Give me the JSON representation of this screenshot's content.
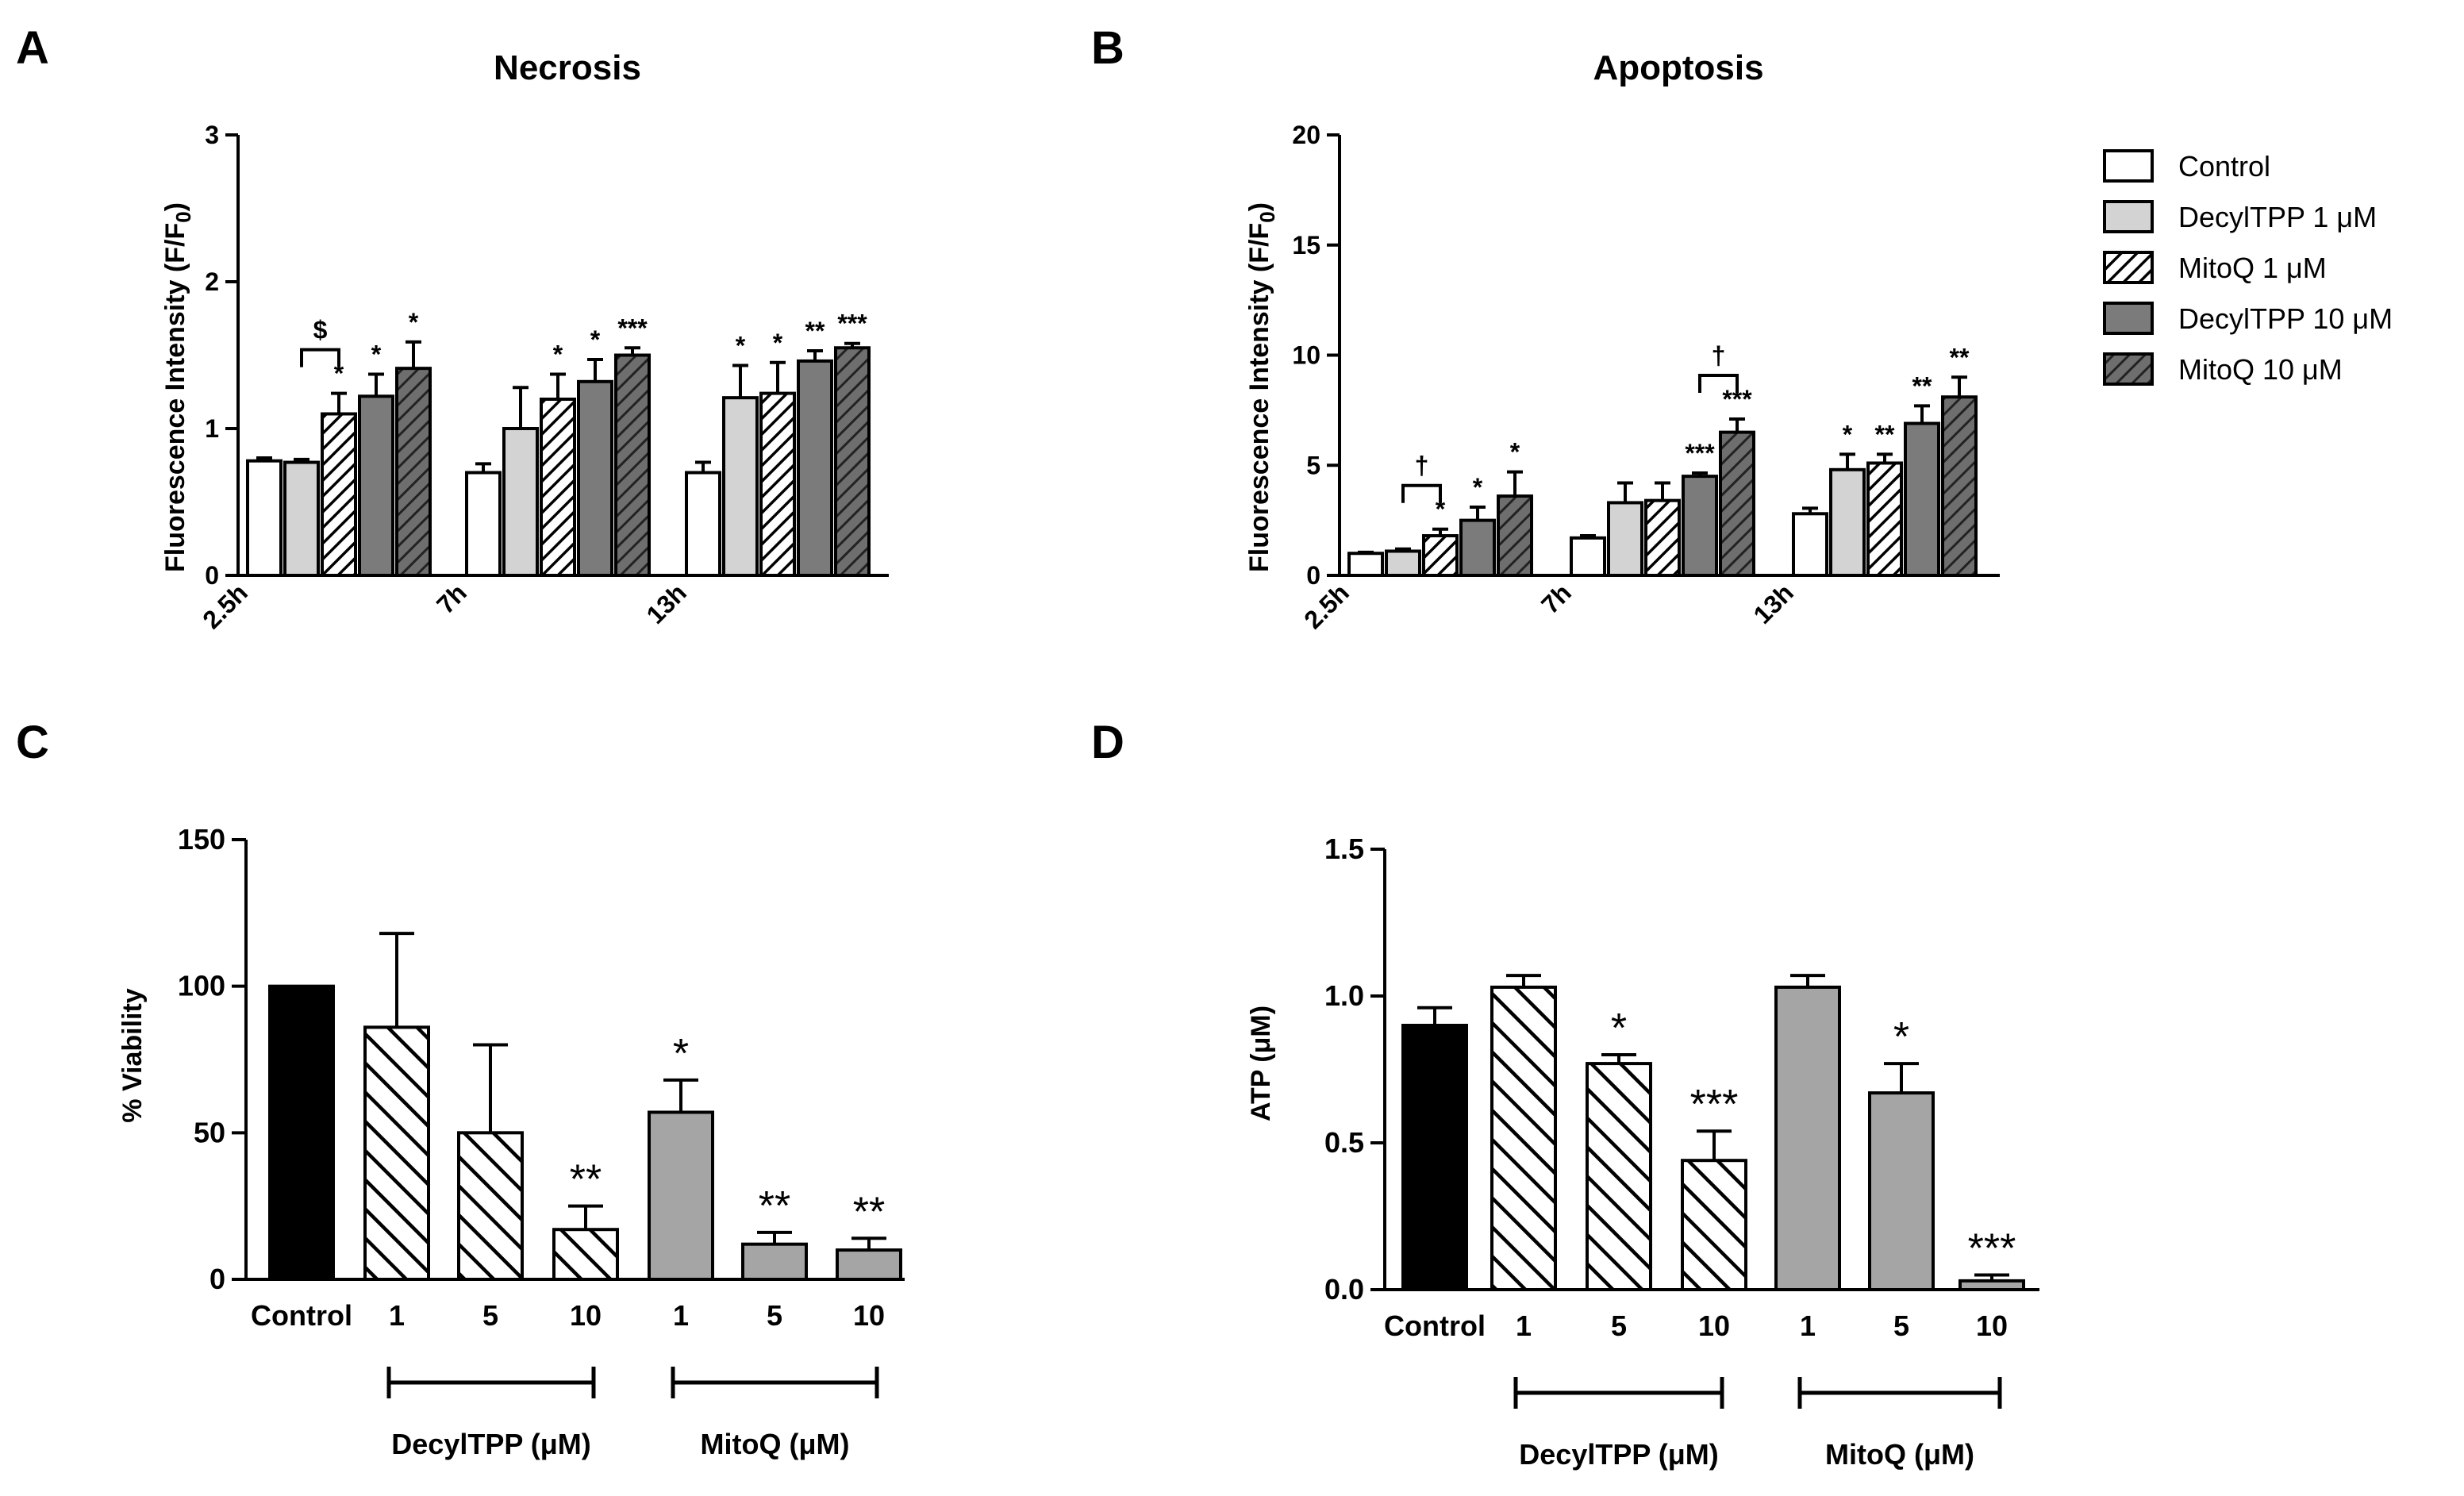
{
  "colors": {
    "control": "#ffffff",
    "decyl1": "#d3d3d3",
    "mitoq1": "#ffffff",
    "decyl10": "#7b7b7b",
    "mitoq10": "#6e6e6e",
    "black": "#000000",
    "grey": "#a5a5a5"
  },
  "legend": [
    {
      "label": "Control",
      "key": "control",
      "hatch": false
    },
    {
      "label": "DecylTPP 1 μM",
      "key": "decyl1",
      "hatch": false
    },
    {
      "label": "MitoQ 1 μM",
      "key": "mitoq1",
      "hatch": true
    },
    {
      "label": "DecylTPP 10 μM",
      "key": "decyl10",
      "hatch": false
    },
    {
      "label": "MitoQ 10 μM",
      "key": "mitoq10",
      "hatch": true
    }
  ],
  "chart_data": [
    {
      "panel": "A",
      "type": "bar",
      "title": "Necrosis",
      "ylabel": "Fluorescence Intensity (F/F0)",
      "ylim": [
        0,
        3
      ],
      "yticks": [
        0,
        1,
        2,
        3
      ],
      "categories": [
        "2.5h",
        "7h",
        "13h"
      ],
      "series": [
        {
          "name": "Control",
          "values": [
            0.78,
            0.7,
            0.7
          ],
          "errors": [
            0.02,
            0.06,
            0.07
          ],
          "sig": [
            "",
            "",
            ""
          ]
        },
        {
          "name": "DecylTPP 1 μM",
          "values": [
            0.77,
            1.0,
            1.21
          ],
          "errors": [
            0.02,
            0.28,
            0.22
          ],
          "sig": [
            "",
            "",
            "*"
          ]
        },
        {
          "name": "MitoQ 1 μM",
          "values": [
            1.1,
            1.2,
            1.24
          ],
          "errors": [
            0.14,
            0.17,
            0.21
          ],
          "sig": [
            "*",
            "*",
            "*"
          ]
        },
        {
          "name": "DecylTPP 10 μM",
          "values": [
            1.22,
            1.32,
            1.46
          ],
          "errors": [
            0.15,
            0.15,
            0.07
          ],
          "sig": [
            "*",
            "*",
            "**"
          ]
        },
        {
          "name": "MitoQ 10 μM",
          "values": [
            1.41,
            1.5,
            1.55
          ],
          "errors": [
            0.18,
            0.05,
            0.03
          ],
          "sig": [
            "*",
            "***",
            "***"
          ]
        }
      ],
      "bracket": {
        "category": 0,
        "from": 1,
        "to": 2,
        "label": "$"
      }
    },
    {
      "panel": "B",
      "type": "bar",
      "title": "Apoptosis",
      "ylabel": "Fluorescence Intensity (F/F0)",
      "ylim": [
        0,
        20
      ],
      "yticks": [
        0,
        5,
        10,
        15,
        20
      ],
      "categories": [
        "2.5h",
        "7h",
        "13h"
      ],
      "series": [
        {
          "name": "Control",
          "values": [
            1.0,
            1.7,
            2.8
          ],
          "errors": [
            0.05,
            0.1,
            0.25
          ],
          "sig": [
            "",
            "",
            ""
          ]
        },
        {
          "name": "DecylTPP 1 μM",
          "values": [
            1.1,
            3.3,
            4.8
          ],
          "errors": [
            0.1,
            0.9,
            0.7
          ],
          "sig": [
            "",
            "",
            "*"
          ]
        },
        {
          "name": "MitoQ 1 μM",
          "values": [
            1.8,
            3.4,
            5.1
          ],
          "errors": [
            0.3,
            0.8,
            0.4
          ],
          "sig": [
            "*",
            "",
            "**"
          ]
        },
        {
          "name": "DecylTPP 10 μM",
          "values": [
            2.5,
            4.5,
            6.9
          ],
          "errors": [
            0.6,
            0.15,
            0.8
          ],
          "sig": [
            "*",
            "***",
            "**"
          ]
        },
        {
          "name": "MitoQ 10 μM",
          "values": [
            3.6,
            6.5,
            8.1
          ],
          "errors": [
            1.1,
            0.6,
            0.9
          ],
          "sig": [
            "*",
            "***",
            "**"
          ]
        }
      ],
      "brackets": [
        {
          "category": 0,
          "from": 1,
          "to": 2,
          "label": "†"
        },
        {
          "category": 1,
          "from": 3,
          "to": 4,
          "label": "†"
        }
      ]
    },
    {
      "panel": "C",
      "type": "bar",
      "ylabel": "% Viability",
      "ylim": [
        0,
        150
      ],
      "yticks": [
        0,
        50,
        100,
        150
      ],
      "categories": [
        "Control",
        "1",
        "5",
        "10",
        "1",
        "5",
        "10"
      ],
      "values": [
        100,
        86,
        50,
        17,
        57,
        12,
        10
      ],
      "errors": [
        0,
        32,
        30,
        8,
        11,
        4,
        4
      ],
      "sig": [
        "",
        "",
        "",
        "**",
        "*",
        "**",
        "**"
      ],
      "styles": [
        "black",
        "hatch",
        "hatch",
        "hatch",
        "grey",
        "grey",
        "grey"
      ],
      "groups": [
        {
          "label": "DecylTPP (μM)",
          "from": 1,
          "to": 3
        },
        {
          "label": "MitoQ (μM)",
          "from": 4,
          "to": 6
        }
      ]
    },
    {
      "panel": "D",
      "type": "bar",
      "ylabel": "ATP (μM)",
      "ylim": [
        0,
        1.5
      ],
      "yticks": [
        "0.0",
        "0.5",
        "1.0",
        "1.5"
      ],
      "categories": [
        "Control",
        "1",
        "5",
        "10",
        "1",
        "5",
        "10"
      ],
      "values": [
        0.9,
        1.03,
        0.77,
        0.44,
        1.03,
        0.67,
        0.03
      ],
      "errors": [
        0.06,
        0.04,
        0.03,
        0.1,
        0.04,
        0.1,
        0.02
      ],
      "sig": [
        "",
        "",
        "*",
        "***",
        "",
        "*",
        "***"
      ],
      "styles": [
        "black",
        "hatch",
        "hatch",
        "hatch",
        "grey",
        "grey",
        "grey"
      ],
      "groups": [
        {
          "label": "DecylTPP (μM)",
          "from": 1,
          "to": 3
        },
        {
          "label": "MitoQ (μM)",
          "from": 4,
          "to": 6
        }
      ]
    }
  ]
}
